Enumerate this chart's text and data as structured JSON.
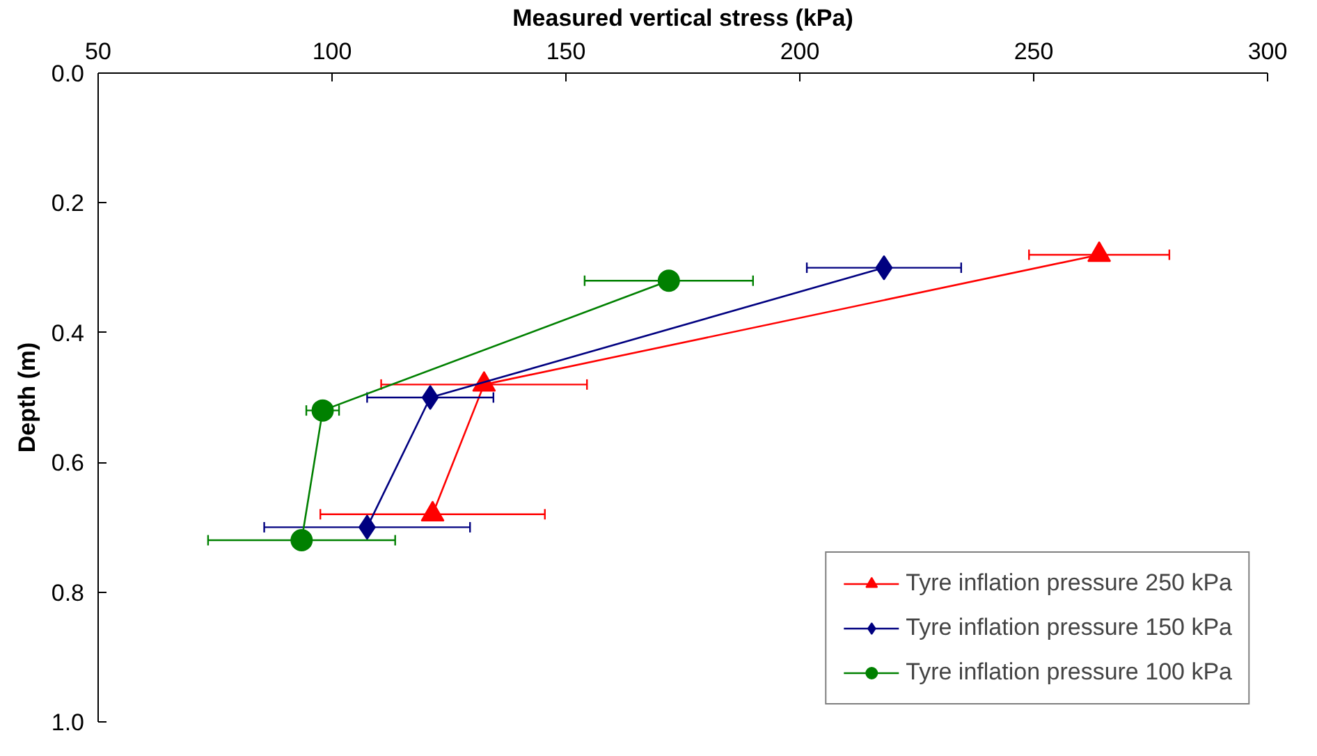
{
  "chart_data": {
    "type": "line",
    "xlabel": "Measured vertical stress (kPa)",
    "ylabel": "Depth (m)",
    "xlim": [
      50,
      300
    ],
    "xticks": [
      50,
      100,
      150,
      200,
      250,
      300
    ],
    "ylim": [
      1.0,
      0.0
    ],
    "yticks": [
      {
        "value": 0.0,
        "label": "0.0"
      },
      {
        "value": 0.2,
        "label": "0.2"
      },
      {
        "value": 0.4,
        "label": "0.4"
      },
      {
        "value": 0.6,
        "label": "0.6"
      },
      {
        "value": 0.8,
        "label": "0.8"
      },
      {
        "value": 1.0,
        "label": "1.0"
      }
    ],
    "grid": false,
    "legend": "bottom right",
    "series": [
      {
        "name": "Tyre inflation pressure 250 kPa",
        "color": "#ff0000",
        "marker": "triangle",
        "x": [
          264,
          132.5,
          121.5
        ],
        "values": [
          0.28,
          0.48,
          0.68
        ],
        "xerrors": [
          15,
          22,
          24
        ]
      },
      {
        "name": "Tyre inflation pressure 150 kPa",
        "color": "#000080",
        "marker": "diamond",
        "x": [
          218,
          121,
          107.5
        ],
        "values": [
          0.3,
          0.5,
          0.7
        ],
        "xerrors": [
          16.5,
          13.5,
          22
        ]
      },
      {
        "name": "Tyre inflation pressure 100 kPa",
        "color": "#008000",
        "marker": "circle",
        "x": [
          172,
          98,
          93.5
        ],
        "values": [
          0.32,
          0.52,
          0.72
        ],
        "xerrors": [
          18,
          3.5,
          20
        ]
      }
    ]
  }
}
